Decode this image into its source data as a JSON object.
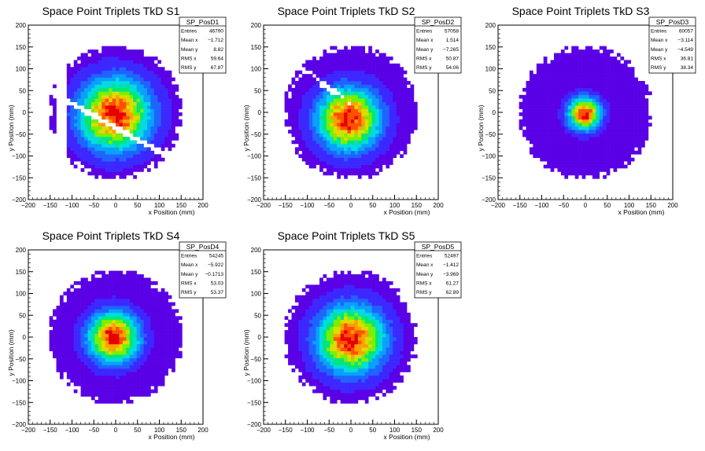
{
  "chart_data": [
    {
      "type": "heatmap",
      "title": "Space Point Triplets TkD S1",
      "xlabel": "x Position (mm)",
      "ylabel": "y Position (mm)",
      "xlim": [
        -200,
        200
      ],
      "ylim": [
        -200,
        200
      ],
      "xticks": [
        -200,
        -150,
        -100,
        -50,
        0,
        50,
        100,
        150,
        200
      ],
      "yticks": [
        -200,
        -150,
        -100,
        -50,
        0,
        50,
        100,
        150,
        200
      ],
      "stats": {
        "name": "SP_PosD1",
        "rows": [
          {
            "label": "Entries",
            "value": "46790"
          },
          {
            "label": "Mean x",
            "value": "−1.712"
          },
          {
            "label": "Mean y",
            "value": "8.82"
          },
          {
            "label": "RMS x",
            "value": "59.64"
          },
          {
            "label": "RMS y",
            "value": "67.87"
          }
        ]
      },
      "density": {
        "radius": 155,
        "peak_x": -2,
        "peak_y": -5,
        "sigma": 48,
        "gap": "diagonal",
        "left_gap": true
      }
    },
    {
      "type": "heatmap",
      "title": "Space Point Triplets TkD S2",
      "xlabel": "x Position (mm)",
      "ylabel": "y Position (mm)",
      "xlim": [
        -200,
        200
      ],
      "ylim": [
        -200,
        200
      ],
      "xticks": [
        -200,
        -150,
        -100,
        -50,
        0,
        50,
        100,
        150,
        200
      ],
      "yticks": [
        -200,
        -150,
        -100,
        -50,
        0,
        50,
        100,
        150,
        200
      ],
      "stats": {
        "name": "SP_PosD2",
        "rows": [
          {
            "label": "Entries",
            "value": "57058"
          },
          {
            "label": "Mean x",
            "value": "1.514"
          },
          {
            "label": "Mean y",
            "value": "−7.265"
          },
          {
            "label": "RMS x",
            "value": "50.87"
          },
          {
            "label": "RMS y",
            "value": "54.06"
          }
        ]
      },
      "density": {
        "radius": 155,
        "peak_x": -5,
        "peak_y": -15,
        "sigma": 42,
        "gap": "band",
        "left_gap": false
      }
    },
    {
      "type": "heatmap",
      "title": "Space Point Triplets TkD S3",
      "xlabel": "x Position (mm)",
      "ylabel": "y Position (mm)",
      "xlim": [
        -200,
        200
      ],
      "ylim": [
        -200,
        200
      ],
      "xticks": [
        -200,
        -150,
        -100,
        -50,
        0,
        50,
        100,
        150,
        200
      ],
      "yticks": [
        -200,
        -150,
        -100,
        -50,
        0,
        50,
        100,
        150,
        200
      ],
      "stats": {
        "name": "SP_PosD3",
        "rows": [
          {
            "label": "Entries",
            "value": "60057"
          },
          {
            "label": "Mean x",
            "value": "−3.114"
          },
          {
            "label": "Mean y",
            "value": "−4.549"
          },
          {
            "label": "RMS x",
            "value": "36.81"
          },
          {
            "label": "RMS y",
            "value": "38.34"
          }
        ]
      },
      "density": {
        "radius": 155,
        "peak_x": -2,
        "peak_y": -3,
        "sigma": 22,
        "gap": "none",
        "left_gap": false
      }
    },
    {
      "type": "heatmap",
      "title": "Space Point Triplets TkD S4",
      "xlabel": "x Position (mm)",
      "ylabel": "y Position (mm)",
      "xlim": [
        -200,
        200
      ],
      "ylim": [
        -200,
        200
      ],
      "xticks": [
        -200,
        -150,
        -100,
        -50,
        0,
        50,
        100,
        150,
        200
      ],
      "yticks": [
        -200,
        -150,
        -100,
        -50,
        0,
        50,
        100,
        150,
        200
      ],
      "stats": {
        "name": "SP_PosD4",
        "rows": [
          {
            "label": "Entries",
            "value": "54245"
          },
          {
            "label": "Mean x",
            "value": "−5.922"
          },
          {
            "label": "Mean y",
            "value": "−0.1713"
          },
          {
            "label": "RMS x",
            "value": "53.03"
          },
          {
            "label": "RMS y",
            "value": "53.37"
          }
        ]
      },
      "density": {
        "radius": 155,
        "peak_x": -5,
        "peak_y": 0,
        "sigma": 34,
        "gap": "none",
        "left_gap": false
      }
    },
    {
      "type": "heatmap",
      "title": "Space Point Triplets TkD S5",
      "xlabel": "x Position (mm)",
      "ylabel": "y Position (mm)",
      "xlim": [
        -200,
        200
      ],
      "ylim": [
        -200,
        200
      ],
      "xticks": [
        -200,
        -150,
        -100,
        -50,
        0,
        50,
        100,
        150,
        200
      ],
      "yticks": [
        -200,
        -150,
        -100,
        -50,
        0,
        50,
        100,
        150,
        200
      ],
      "stats": {
        "name": "SP_PosD5",
        "rows": [
          {
            "label": "Entries",
            "value": "52497"
          },
          {
            "label": "Mean x",
            "value": "−1.412"
          },
          {
            "label": "Mean y",
            "value": "−3.969"
          },
          {
            "label": "RMS x",
            "value": "61.27"
          },
          {
            "label": "RMS y",
            "value": "62.89"
          }
        ]
      },
      "density": {
        "radius": 155,
        "peak_x": 0,
        "peak_y": -5,
        "sigma": 45,
        "gap": "none",
        "left_gap": false
      }
    }
  ],
  "palette": [
    "#5a00e6",
    "#3c28ff",
    "#1e64ff",
    "#0aa0ff",
    "#00dcdc",
    "#00e678",
    "#78f000",
    "#dcdc00",
    "#ffa000",
    "#ff5000",
    "#e60000"
  ]
}
